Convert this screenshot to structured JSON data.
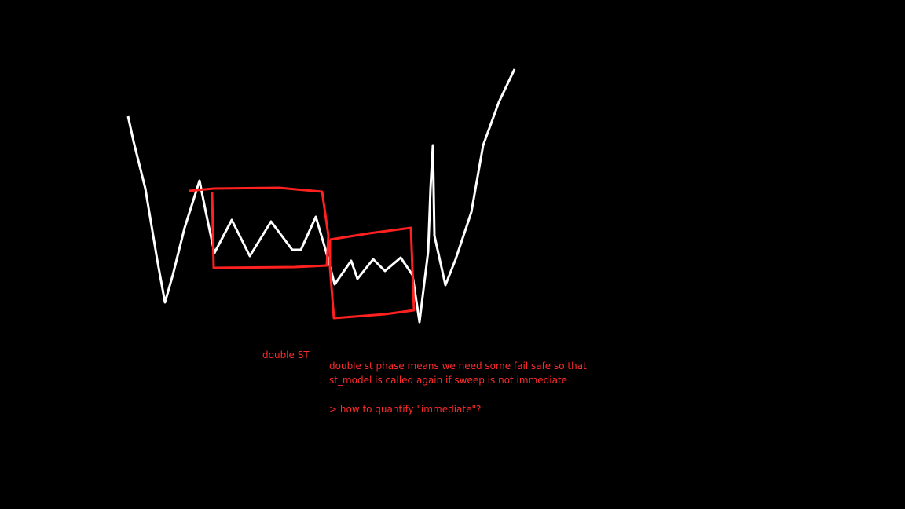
{
  "labels": {
    "tag": "double ST",
    "note": [
      "double st phase means we need some fail safe so that",
      "st_model is called again if sweep is not immediate"
    ],
    "question": "> how to quantify \"immediate\"?"
  }
}
